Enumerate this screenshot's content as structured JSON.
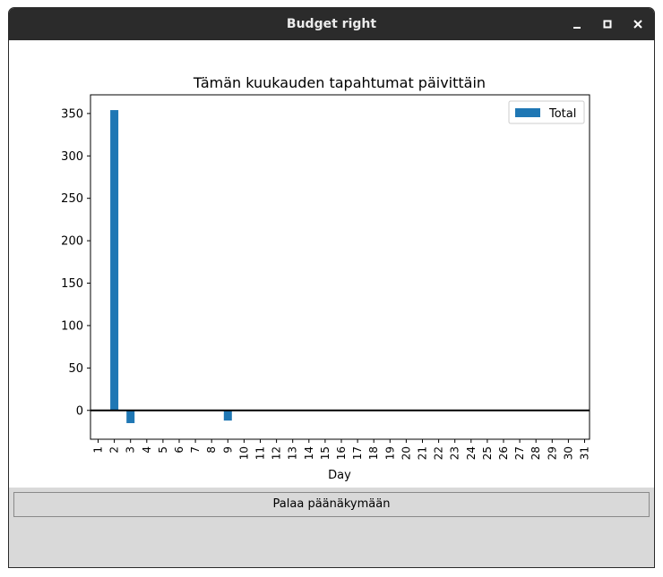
{
  "window": {
    "title": "Budget right"
  },
  "controls": {
    "return_label": "Palaa päänäkymään"
  },
  "colors": {
    "bar": "#1f77b4",
    "titlebar": "#2b2b2b",
    "panel": "#d9d9d9"
  },
  "chart_data": {
    "type": "bar",
    "title": "Tämän kuukauden tapahtumat päivittäin",
    "xlabel": "Day",
    "ylabel": "",
    "categories": [
      "1",
      "2",
      "3",
      "4",
      "5",
      "6",
      "7",
      "8",
      "9",
      "10",
      "11",
      "12",
      "13",
      "14",
      "15",
      "16",
      "17",
      "18",
      "19",
      "20",
      "21",
      "22",
      "23",
      "24",
      "25",
      "26",
      "27",
      "28",
      "29",
      "30",
      "31"
    ],
    "series": [
      {
        "name": "Total",
        "values": [
          0,
          354,
          -15,
          0,
          0,
          0,
          0,
          0,
          -12,
          0,
          0,
          0,
          0,
          0,
          0,
          0,
          0,
          0,
          0,
          0,
          0,
          0,
          0,
          0,
          0,
          0,
          0,
          0,
          0,
          0,
          0
        ]
      }
    ],
    "ylim": [
      -34,
      372
    ],
    "yticks": [
      0,
      50,
      100,
      150,
      200,
      250,
      300,
      350
    ],
    "legend": "top-right",
    "zero_line": true,
    "grid": false
  }
}
